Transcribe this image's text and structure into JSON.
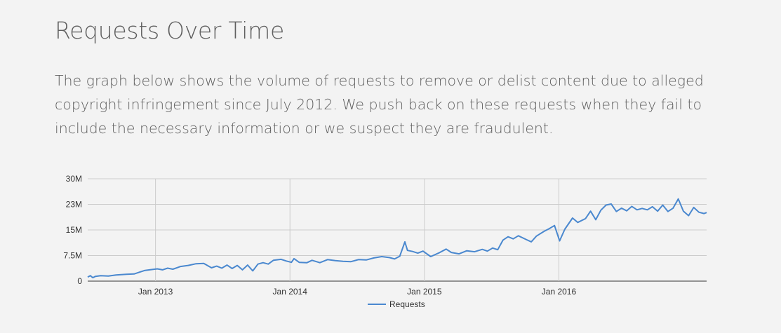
{
  "page": {
    "title": "Requests Over Time",
    "description": "The graph below shows the volume of requests to remove or delist content due to alleged copyright infringement since July 2012. We push back on these requests when they fail to include the necessary information or we suspect they are fraudulent."
  },
  "chart_data": {
    "type": "line",
    "x_start": "Jul 2012",
    "x_step": "weekly",
    "ylim": [
      0,
      30000000
    ],
    "y_ticks": [
      {
        "value": 0,
        "label": "0"
      },
      {
        "value": 7500000,
        "label": "7.5M"
      },
      {
        "value": 15000000,
        "label": "15M"
      },
      {
        "value": 22500000,
        "label": "23M"
      },
      {
        "value": 30000000,
        "label": "30M"
      }
    ],
    "x_ticks": [
      {
        "date": "2013-01-01",
        "label": "Jan 2013"
      },
      {
        "date": "2014-01-01",
        "label": "Jan 2014"
      },
      {
        "date": "2015-01-01",
        "label": "Jan 2015"
      },
      {
        "date": "2016-01-01",
        "label": "Jan 2016"
      }
    ],
    "grid": true,
    "legend_position": "bottom",
    "series": [
      {
        "name": "Requests",
        "color": "#4a88cf",
        "keypoints": [
          [
            "2012-07-01",
            1200000
          ],
          [
            "2012-07-08",
            1600000
          ],
          [
            "2012-07-15",
            1000000
          ],
          [
            "2012-07-22",
            1400000
          ],
          [
            "2012-08-05",
            1600000
          ],
          [
            "2012-08-26",
            1500000
          ],
          [
            "2012-09-16",
            1800000
          ],
          [
            "2012-10-14",
            2000000
          ],
          [
            "2012-11-04",
            2100000
          ],
          [
            "2012-11-18",
            2600000
          ],
          [
            "2012-12-02",
            3100000
          ],
          [
            "2012-12-16",
            3300000
          ],
          [
            "2013-01-06",
            3600000
          ],
          [
            "2013-01-20",
            3300000
          ],
          [
            "2013-02-03",
            3800000
          ],
          [
            "2013-02-17",
            3500000
          ],
          [
            "2013-03-10",
            4300000
          ],
          [
            "2013-03-31",
            4600000
          ],
          [
            "2013-04-21",
            5100000
          ],
          [
            "2013-05-12",
            5200000
          ],
          [
            "2013-06-02",
            3900000
          ],
          [
            "2013-06-16",
            4400000
          ],
          [
            "2013-06-30",
            3800000
          ],
          [
            "2013-07-14",
            4700000
          ],
          [
            "2013-07-28",
            3700000
          ],
          [
            "2013-08-11",
            4600000
          ],
          [
            "2013-08-25",
            3300000
          ],
          [
            "2013-09-08",
            4700000
          ],
          [
            "2013-09-22",
            3000000
          ],
          [
            "2013-10-06",
            5000000
          ],
          [
            "2013-10-20",
            5400000
          ],
          [
            "2013-11-03",
            5000000
          ],
          [
            "2013-11-17",
            6100000
          ],
          [
            "2013-12-08",
            6400000
          ],
          [
            "2013-12-22",
            5900000
          ],
          [
            "2014-01-05",
            5500000
          ],
          [
            "2014-01-12",
            6600000
          ],
          [
            "2014-01-26",
            5500000
          ],
          [
            "2014-02-16",
            5400000
          ],
          [
            "2014-03-02",
            6100000
          ],
          [
            "2014-03-23",
            5400000
          ],
          [
            "2014-04-13",
            6300000
          ],
          [
            "2014-05-04",
            6000000
          ],
          [
            "2014-05-25",
            5800000
          ],
          [
            "2014-06-15",
            5700000
          ],
          [
            "2014-07-06",
            6300000
          ],
          [
            "2014-07-27",
            6200000
          ],
          [
            "2014-08-17",
            6800000
          ],
          [
            "2014-09-07",
            7200000
          ],
          [
            "2014-09-28",
            6900000
          ],
          [
            "2014-10-12",
            6500000
          ],
          [
            "2014-10-26",
            7300000
          ],
          [
            "2014-11-09",
            11500000
          ],
          [
            "2014-11-16",
            9000000
          ],
          [
            "2014-11-30",
            8700000
          ],
          [
            "2014-12-14",
            8200000
          ],
          [
            "2014-12-28",
            8800000
          ],
          [
            "2015-01-18",
            7200000
          ],
          [
            "2015-02-08",
            8200000
          ],
          [
            "2015-03-01",
            9400000
          ],
          [
            "2015-03-15",
            8400000
          ],
          [
            "2015-04-05",
            8000000
          ],
          [
            "2015-04-26",
            8900000
          ],
          [
            "2015-05-17",
            8600000
          ],
          [
            "2015-06-07",
            9300000
          ],
          [
            "2015-06-21",
            8800000
          ],
          [
            "2015-07-05",
            9700000
          ],
          [
            "2015-07-19",
            9200000
          ],
          [
            "2015-08-02",
            12000000
          ],
          [
            "2015-08-16",
            13000000
          ],
          [
            "2015-08-30",
            12400000
          ],
          [
            "2015-09-13",
            13300000
          ],
          [
            "2015-10-04",
            12200000
          ],
          [
            "2015-10-18",
            11500000
          ],
          [
            "2015-11-01",
            13200000
          ],
          [
            "2015-11-22",
            14600000
          ],
          [
            "2015-12-06",
            15400000
          ],
          [
            "2015-12-20",
            16300000
          ],
          [
            "2016-01-03",
            11800000
          ],
          [
            "2016-01-17",
            15200000
          ],
          [
            "2016-02-07",
            18500000
          ],
          [
            "2016-02-21",
            17200000
          ],
          [
            "2016-03-13",
            18300000
          ],
          [
            "2016-03-27",
            20500000
          ],
          [
            "2016-04-10",
            18000000
          ],
          [
            "2016-04-24",
            20800000
          ],
          [
            "2016-05-08",
            22300000
          ],
          [
            "2016-05-22",
            22600000
          ],
          [
            "2016-06-05",
            20400000
          ],
          [
            "2016-06-19",
            21400000
          ],
          [
            "2016-07-03",
            20600000
          ],
          [
            "2016-07-17",
            21900000
          ],
          [
            "2016-07-31",
            20900000
          ],
          [
            "2016-08-14",
            21300000
          ],
          [
            "2016-08-28",
            20900000
          ],
          [
            "2016-09-11",
            21800000
          ],
          [
            "2016-09-25",
            20500000
          ],
          [
            "2016-10-09",
            22300000
          ],
          [
            "2016-10-23",
            20400000
          ],
          [
            "2016-11-06",
            21400000
          ],
          [
            "2016-11-20",
            24100000
          ],
          [
            "2016-12-04",
            20500000
          ],
          [
            "2016-12-18",
            19200000
          ],
          [
            "2017-01-01",
            21600000
          ],
          [
            "2017-01-15",
            20200000
          ],
          [
            "2017-01-29",
            19800000
          ],
          [
            "2017-02-05",
            20100000
          ]
        ]
      }
    ]
  }
}
